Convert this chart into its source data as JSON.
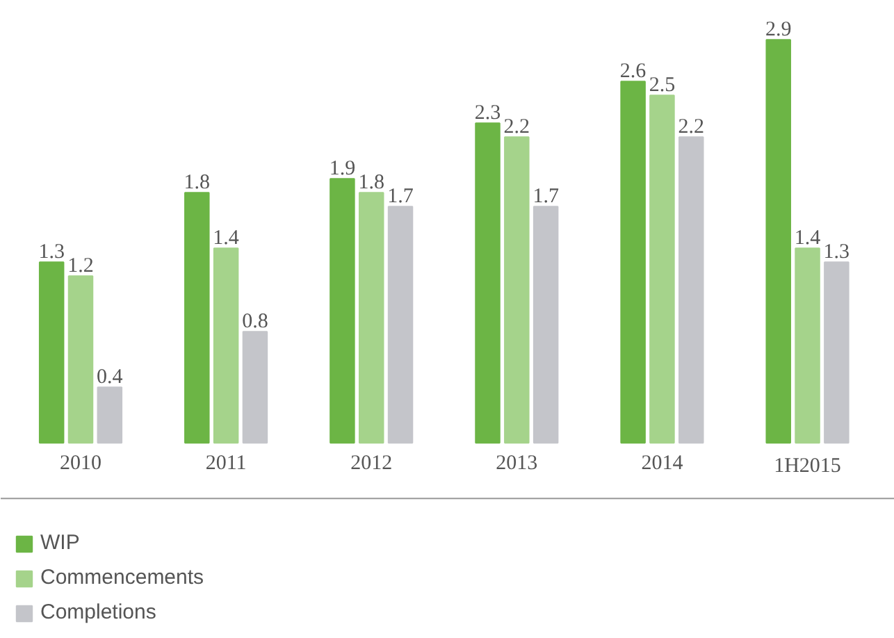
{
  "chart_data": {
    "type": "bar",
    "categories": [
      "2010",
      "2011",
      "2012",
      "2013",
      "2014",
      "1H2015"
    ],
    "series": [
      {
        "name": "WIP",
        "color": "#6cb545",
        "values": [
          1.3,
          1.8,
          1.9,
          2.3,
          2.6,
          2.9
        ]
      },
      {
        "name": "Commencements",
        "color": "#a5d38b",
        "values": [
          1.2,
          1.4,
          1.8,
          2.2,
          2.5,
          1.4
        ]
      },
      {
        "name": "Completions",
        "color": "#c4c5ca",
        "values": [
          0.4,
          0.8,
          1.7,
          1.7,
          2.2,
          1.3
        ]
      }
    ],
    "data_labels": true,
    "grid": false,
    "legend": "bottom left"
  }
}
